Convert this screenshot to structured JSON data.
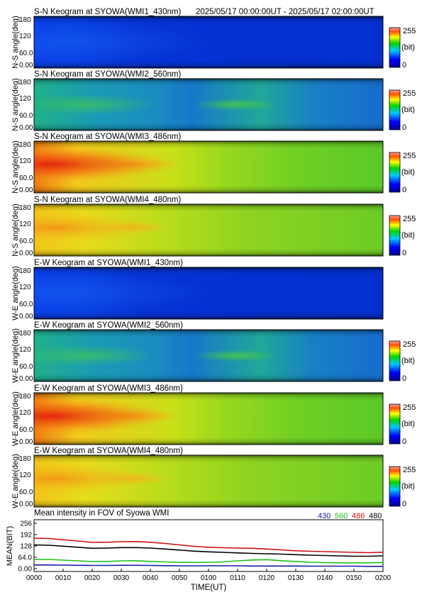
{
  "header": {
    "time_range": "2025/05/17 00:00:00UT - 2025/05/17 02:00:00UT"
  },
  "colorbar": {
    "max_label": "255",
    "unit_label": "(bit)",
    "min_label": "0"
  },
  "keogram_y_ticks": [
    "180",
    "120",
    "60.0",
    "0.00"
  ],
  "keograms": [
    {
      "title": "S-N Keogram at SYOWA(WMI1_430nm)",
      "ylabel": "N-S angle(deg)",
      "channel": "430"
    },
    {
      "title": "S-N Keogram at SYOWA(WMI2_560nm)",
      "ylabel": "N-S angle(deg)",
      "channel": "560"
    },
    {
      "title": "S-N Keogram at SYOWA(WMI3_486nm)",
      "ylabel": "N-S angle(deg)",
      "channel": "486"
    },
    {
      "title": "S-N Keogram at SYOWA(WMI4_480nm)",
      "ylabel": "N-S angle(deg)",
      "channel": "480"
    },
    {
      "title": "E-W Keogram at SYOWA(WMI1_430nm)",
      "ylabel": "W-E angle(deg)",
      "channel": "430"
    },
    {
      "title": "E-W Keogram at SYOWA(WMI2_560nm)",
      "ylabel": "W-E angle(deg)",
      "channel": "560"
    },
    {
      "title": "E-W Keogram at SYOWA(WMI3_486nm)",
      "ylabel": "W-E angle(deg)",
      "channel": "486"
    },
    {
      "title": "E-W Keogram at SYOWA(WMI4_480nm)",
      "ylabel": "W-E angle(deg)",
      "channel": "480"
    }
  ],
  "chart_data": {
    "type": "line",
    "title": "Mean intensity in FOV of Syowa WMI",
    "xlabel": "TIME(UT)",
    "ylabel": "MEAN(BIT)",
    "ylim": [
      0,
      256
    ],
    "yticks": [
      "256",
      "192",
      "128",
      "64.0",
      "0.00"
    ],
    "ytick_values": [
      256,
      192,
      128,
      64,
      0
    ],
    "xlim": [
      0,
      120
    ],
    "xticks": [
      "0000",
      "0010",
      "0020",
      "0030",
      "0040",
      "0050",
      "0100",
      "0110",
      "0120",
      "0130",
      "0140",
      "0150",
      "0200"
    ],
    "xtick_values": [
      0,
      10,
      20,
      30,
      40,
      50,
      60,
      70,
      80,
      90,
      100,
      110,
      120
    ],
    "x": [
      0,
      5,
      10,
      15,
      20,
      25,
      30,
      35,
      40,
      45,
      50,
      55,
      60,
      65,
      70,
      75,
      80,
      85,
      90,
      95,
      100,
      105,
      110,
      115,
      120
    ],
    "series": [
      {
        "name": "430",
        "color": "#1a1aa6",
        "values": [
          21,
          21,
          20,
          19,
          18,
          18,
          19,
          19,
          18,
          17,
          16,
          16,
          16,
          16,
          16,
          15,
          15,
          15,
          15,
          14,
          14,
          14,
          14,
          13,
          13
        ]
      },
      {
        "name": "560",
        "color": "#1fbf1f",
        "values": [
          52,
          52,
          48,
          44,
          40,
          41,
          44,
          45,
          41,
          38,
          36,
          35,
          36,
          38,
          44,
          49,
          51,
          45,
          41,
          36,
          34,
          33,
          33,
          33,
          35
        ]
      },
      {
        "name": "486",
        "color": "#cc1111",
        "values": [
          172,
          170,
          163,
          156,
          148,
          149,
          152,
          153,
          149,
          142,
          134,
          126,
          121,
          118,
          116,
          115,
          111,
          106,
          101,
          98,
          96,
          94,
          92,
          90,
          93
        ]
      },
      {
        "name": "480",
        "color": "#000000",
        "values": [
          134,
          132,
          127,
          121,
          115,
          116,
          119,
          119,
          116,
          111,
          105,
          99,
          95,
          92,
          89,
          86,
          84,
          82,
          79,
          76,
          74,
          72,
          70,
          70,
          72
        ]
      }
    ]
  }
}
